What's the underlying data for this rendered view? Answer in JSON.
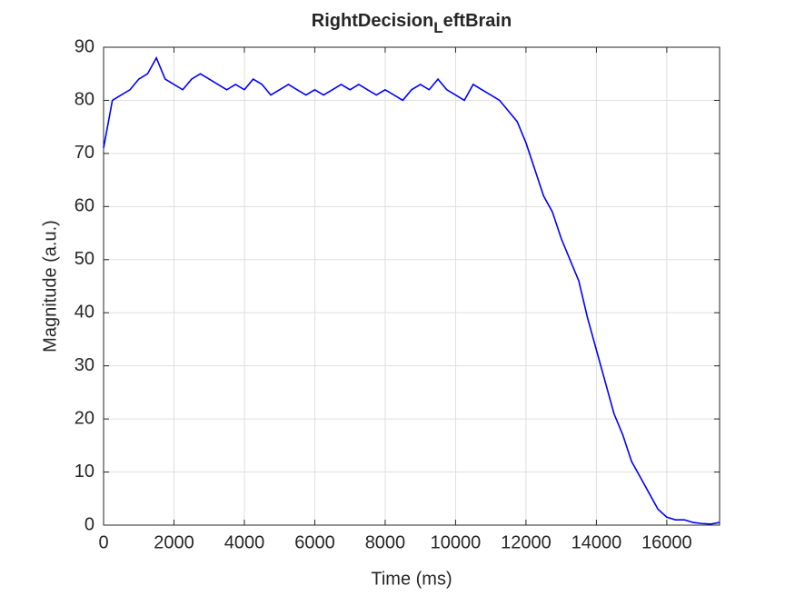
{
  "chart_data": {
    "type": "line",
    "title": [
      {
        "text": "RightDecision"
      },
      {
        "text": "L",
        "subscript": true
      },
      {
        "text": "eftBrain"
      }
    ],
    "xlabel": "Time (ms)",
    "ylabel": "Magnitude (a.u.)",
    "x": [
      0,
      250,
      500,
      750,
      1000,
      1250,
      1500,
      1750,
      2000,
      2250,
      2500,
      2750,
      3000,
      3250,
      3500,
      3750,
      4000,
      4250,
      4500,
      4750,
      5000,
      5250,
      5500,
      5750,
      6000,
      6250,
      6500,
      6750,
      7000,
      7250,
      7500,
      7750,
      8000,
      8250,
      8500,
      8750,
      9000,
      9250,
      9500,
      9750,
      10000,
      10250,
      10500,
      10750,
      11000,
      11250,
      11500,
      11750,
      12000,
      12250,
      12500,
      12750,
      13000,
      13250,
      13500,
      13750,
      14000,
      14250,
      14500,
      14750,
      15000,
      15250,
      15500,
      15750,
      16000,
      16250,
      16500,
      16750,
      17000,
      17250,
      17500
    ],
    "values": [
      71,
      80,
      81,
      82,
      84,
      85,
      88,
      84,
      83,
      82,
      84,
      85,
      84,
      83,
      82,
      83,
      82,
      84,
      83,
      81,
      82,
      83,
      82,
      81,
      82,
      81,
      82,
      83,
      82,
      83,
      82,
      81,
      82,
      81,
      80,
      82,
      83,
      82,
      84,
      82,
      81,
      80,
      83,
      82,
      81,
      80,
      78,
      76,
      72,
      67,
      62,
      59,
      54,
      50,
      46,
      39,
      33,
      27,
      21,
      17,
      12,
      9,
      6,
      3,
      1.5,
      1,
      1,
      0.5,
      0.3,
      0.2,
      0.5
    ],
    "color": "#0000ff",
    "xlim": [
      0,
      17500
    ],
    "xticks": [
      0,
      2000,
      4000,
      6000,
      8000,
      10000,
      12000,
      14000,
      16000
    ],
    "ylim": [
      0,
      90
    ],
    "yticks": [
      0,
      10,
      20,
      30,
      40,
      50,
      60,
      70,
      80,
      90
    ],
    "grid": true
  }
}
